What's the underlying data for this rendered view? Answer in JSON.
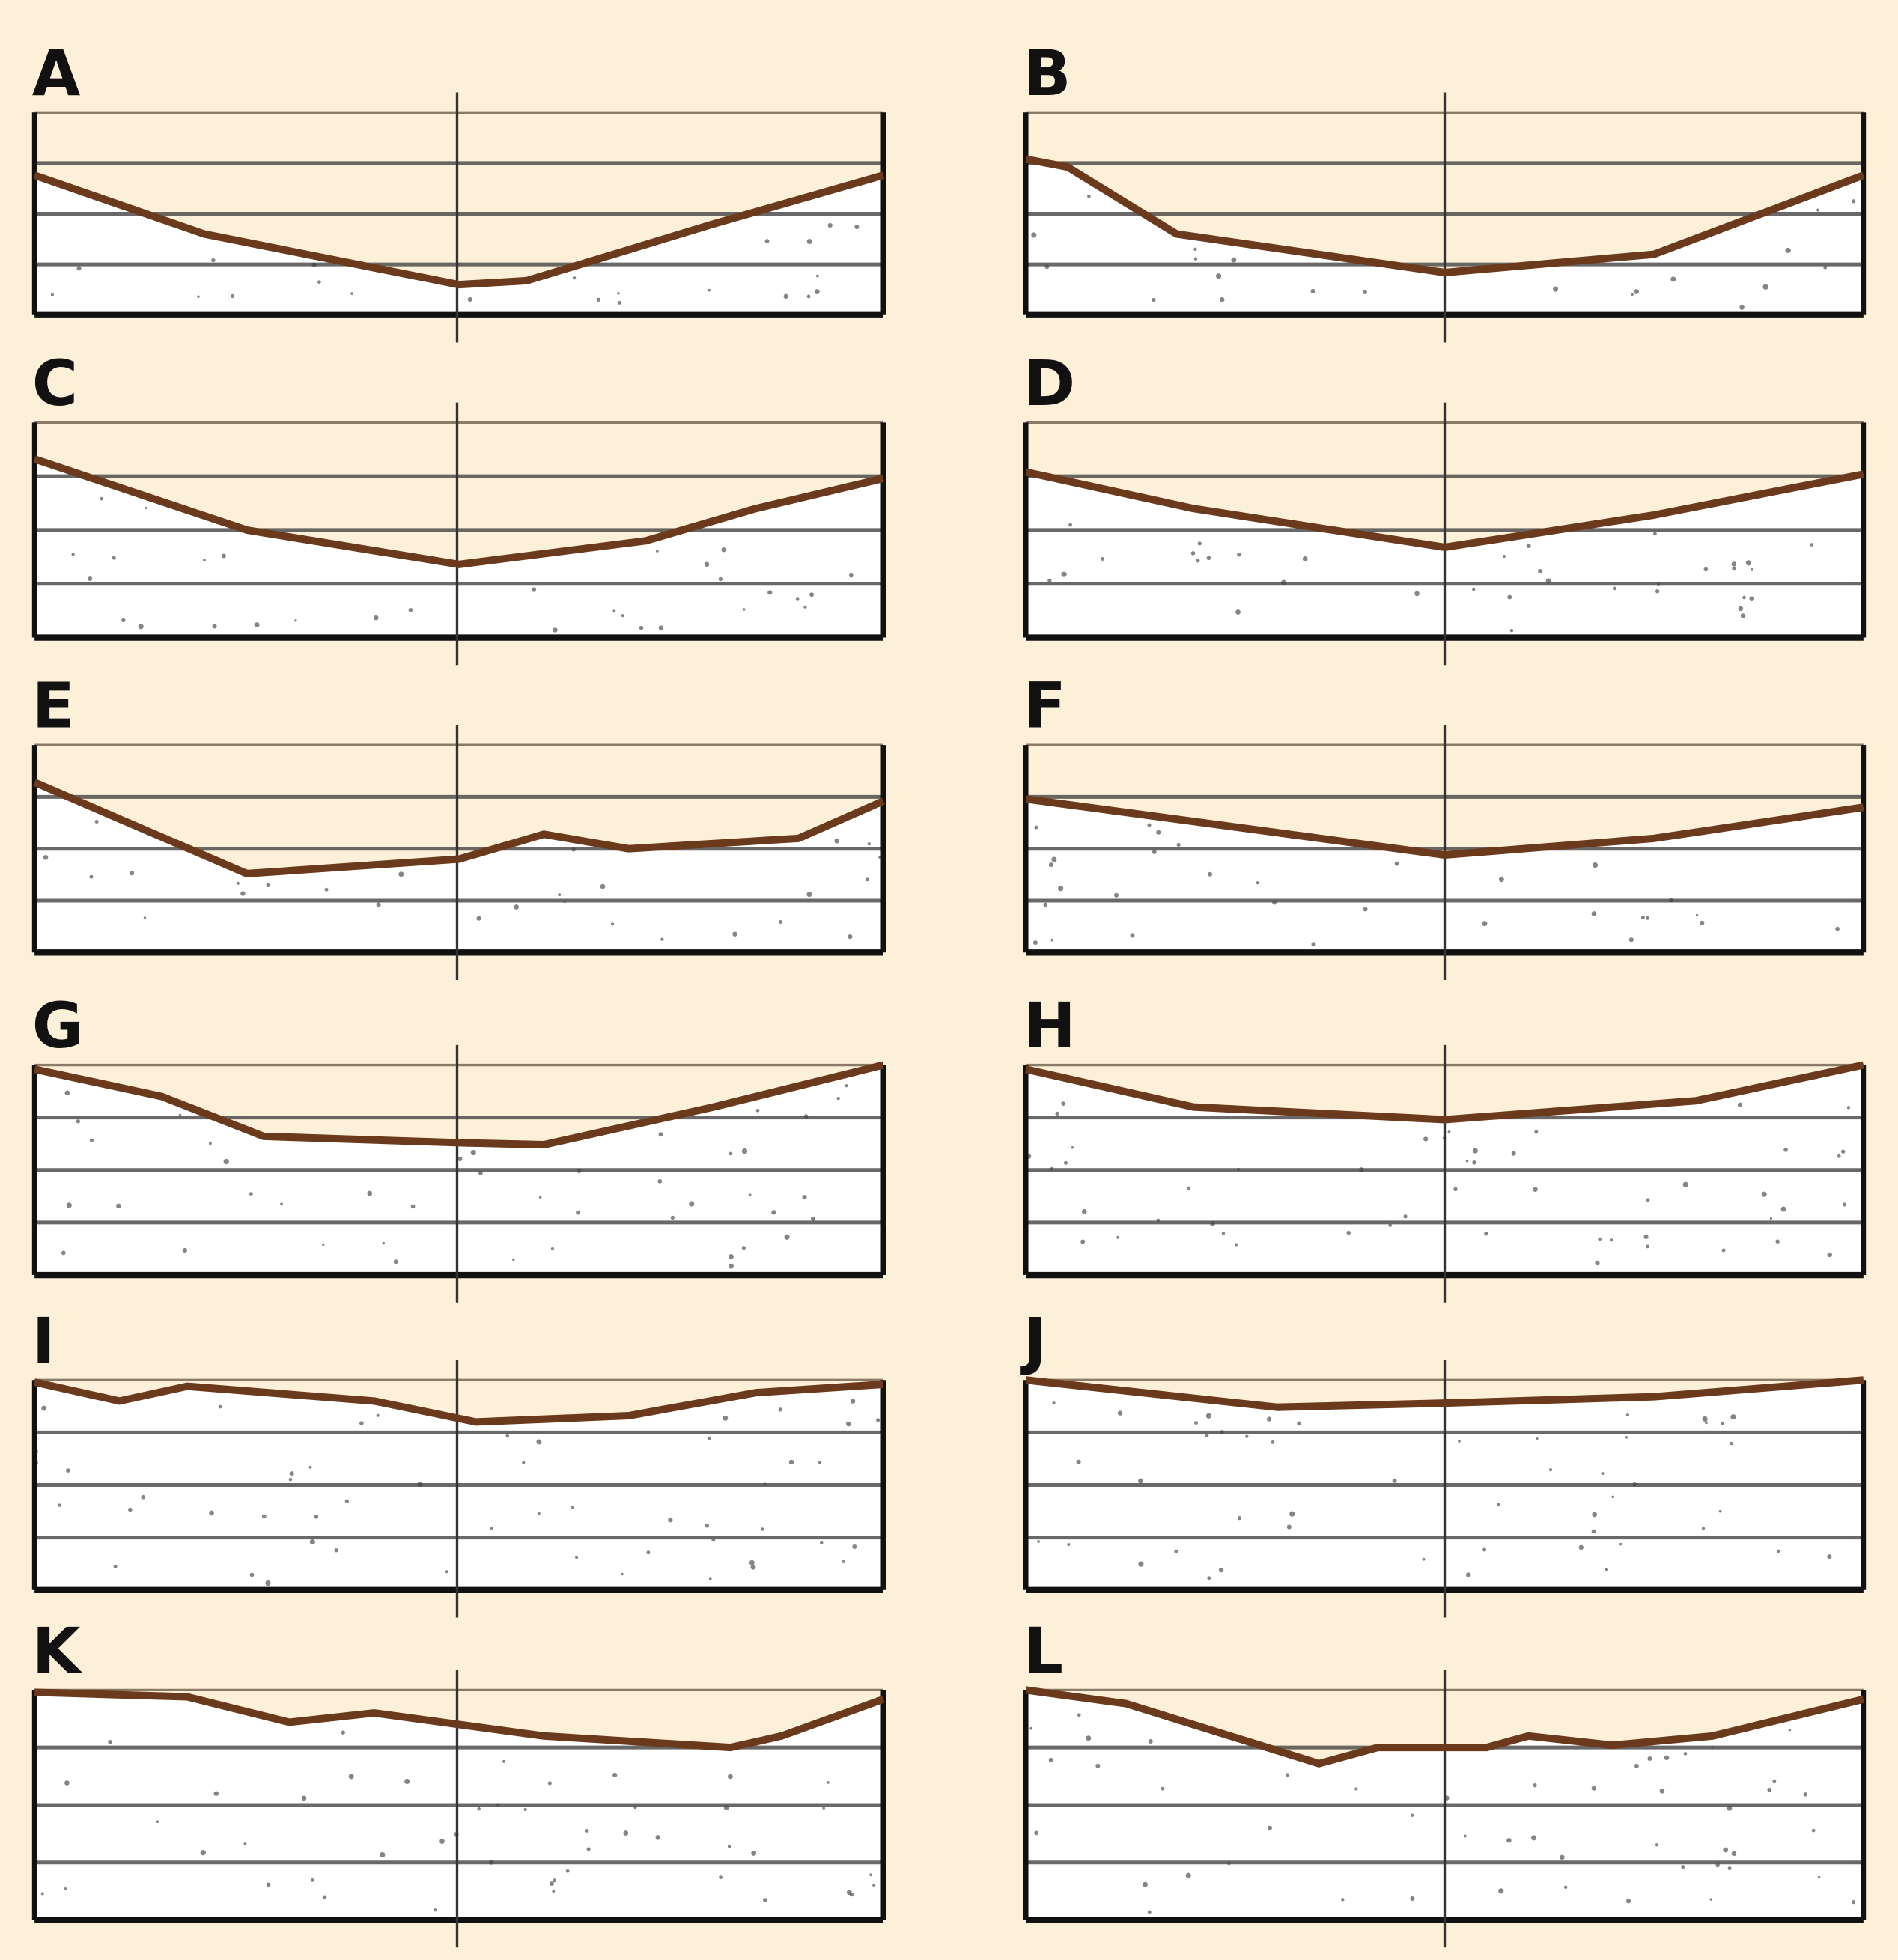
{
  "panels": [
    {
      "label": "A"
    },
    {
      "label": "B"
    },
    {
      "label": "C"
    },
    {
      "label": "D"
    },
    {
      "label": "E"
    },
    {
      "label": "F"
    },
    {
      "label": "G"
    },
    {
      "label": "H"
    },
    {
      "label": "I"
    },
    {
      "label": "J"
    },
    {
      "label": "K"
    },
    {
      "label": "L"
    }
  ]
}
